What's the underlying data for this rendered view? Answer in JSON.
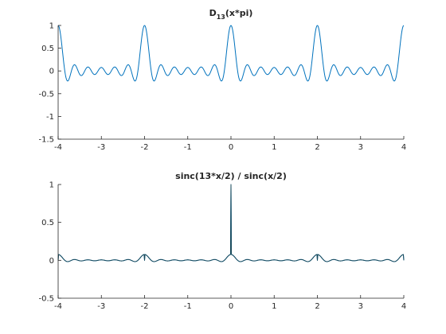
{
  "chart_data": [
    {
      "type": "line",
      "title_main": "D",
      "title_sub": "13",
      "title_rest": "(x*pi)",
      "xlim": [
        -4,
        4
      ],
      "ylim": [
        -1.5,
        1
      ],
      "xticks": [
        "-4",
        "-3",
        "-2",
        "-1",
        "0",
        "1",
        "2",
        "3",
        "4"
      ],
      "yticks": [
        "-1.5",
        "-1",
        "-0.5",
        "0",
        "0.5",
        "1"
      ],
      "grid": false,
      "series": [
        {
          "color": "#0072bd",
          "function": "dirichlet",
          "n": 13,
          "x_range": [
            -4,
            4
          ],
          "samples": 801
        }
      ]
    },
    {
      "type": "line",
      "title": "sinc(13*x/2) / sinc(x/2)",
      "xlim": [
        -4,
        4
      ],
      "ylim": [
        -0.5,
        1
      ],
      "xticks": [
        "-4",
        "-3",
        "-2",
        "-1",
        "0",
        "1",
        "2",
        "3",
        "4"
      ],
      "yticks": [
        "-0.5",
        "0",
        "0.5",
        "1"
      ],
      "grid": false,
      "series": [
        {
          "color": "#0072bd",
          "function": "sinc_ratio",
          "n": 13,
          "x_range": [
            -4,
            4
          ],
          "samples": 801
        },
        {
          "color": "#1a4a5a",
          "function": "sinc_ratio",
          "n": 13,
          "x_range": [
            -4,
            4
          ],
          "samples": 801
        }
      ]
    }
  ]
}
